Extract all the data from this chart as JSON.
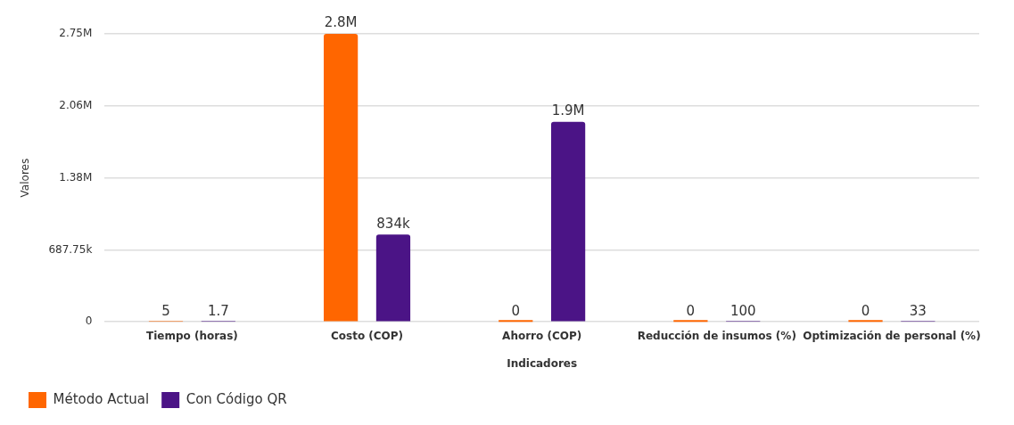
{
  "chart_data": {
    "type": "bar",
    "xlabel": "Indicadores",
    "ylabel": "Valores",
    "categories": [
      "Tiempo (horas)",
      "Costo (COP)",
      "Ahorro (COP)",
      "Reducción de insumos (%)",
      "Optimización de personal (%)"
    ],
    "series": [
      {
        "name": "Método Actual",
        "color": "#ff6600",
        "values": [
          5,
          2751000,
          0,
          0,
          0
        ],
        "value_labels": [
          "5",
          "2.8M",
          "0",
          "0",
          "0"
        ]
      },
      {
        "name": "Con Código QR",
        "color": "#4b1486",
        "values": [
          1.7,
          834000,
          1910000,
          100,
          33
        ],
        "value_labels": [
          "1.7",
          "834k",
          "1.9M",
          "100",
          "33"
        ]
      }
    ],
    "ylim": [
      0,
      2751000
    ],
    "yticks": [
      0,
      {
        "value": 687750,
        "label": "687.75k"
      },
      {
        "value": 1375500,
        "label": "1.38M"
      },
      {
        "value": 2063250,
        "label": "2.06M"
      },
      {
        "value": 2751000,
        "label": "2.75M"
      }
    ],
    "grid": "y",
    "legend": "bottom left"
  }
}
